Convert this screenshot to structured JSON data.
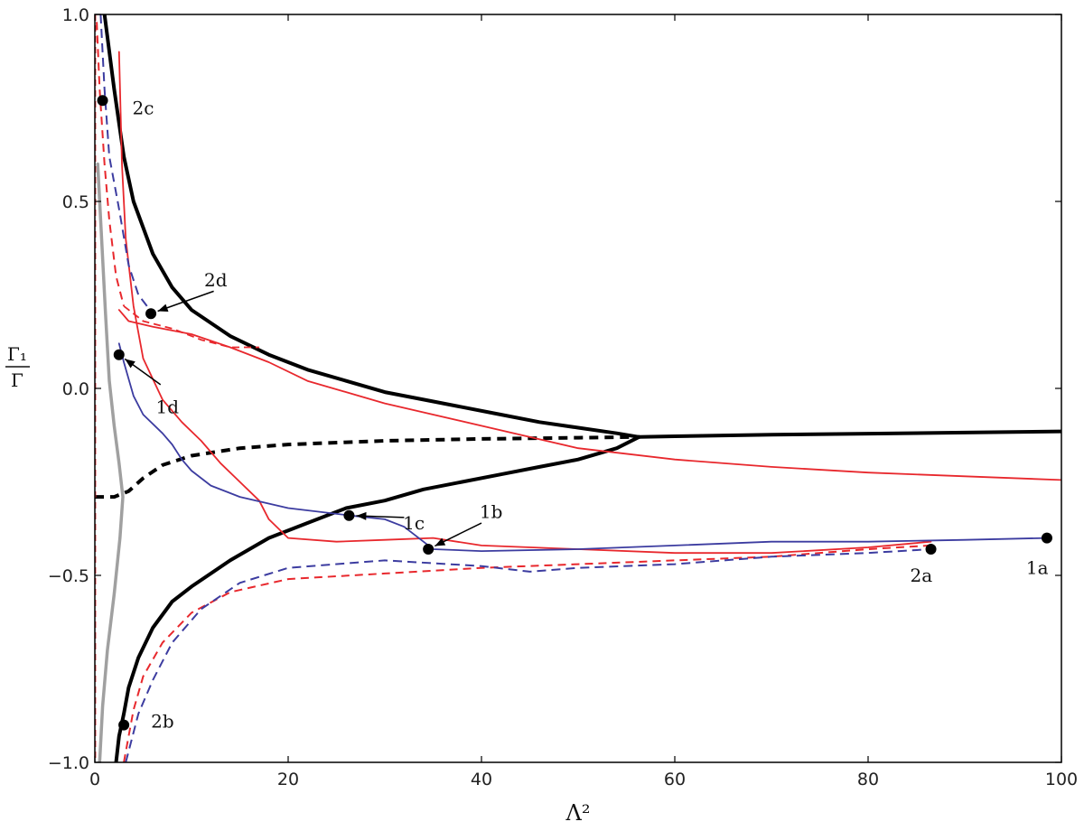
{
  "chart_data": {
    "type": "line",
    "title": "",
    "xlabel": "Λ²",
    "ylabel_numerator": "Γ₁",
    "ylabel_denominator": "Γ",
    "xlim": [
      0,
      100
    ],
    "ylim": [
      -1.0,
      1.0
    ],
    "x_ticks": [
      0,
      20,
      40,
      60,
      80,
      100
    ],
    "y_ticks": [
      -1.0,
      -0.5,
      0.0,
      0.5,
      1.0
    ],
    "x_tick_labels": [
      "0",
      "20",
      "40",
      "60",
      "80",
      "100"
    ],
    "y_tick_labels": [
      "−1.0",
      "−0.5",
      "0.0",
      "0.5",
      "1.0"
    ],
    "grid": false,
    "colors": {
      "black": "#000000",
      "red": "#e8282d",
      "blue": "#3c3ca0",
      "gray": "#a0a0a0"
    },
    "series": [
      {
        "name": "upper-boundary",
        "color": "#000000",
        "dash": "solid",
        "width": 4,
        "points": [
          [
            1.0,
            1.0
          ],
          [
            2,
            0.8
          ],
          [
            3,
            0.62
          ],
          [
            4,
            0.5
          ],
          [
            6,
            0.36
          ],
          [
            8,
            0.27
          ],
          [
            10,
            0.21
          ],
          [
            14,
            0.14
          ],
          [
            18,
            0.09
          ],
          [
            22,
            0.05
          ],
          [
            26,
            0.02
          ],
          [
            30,
            -0.01
          ],
          [
            34,
            -0.03
          ],
          [
            38,
            -0.05
          ],
          [
            42,
            -0.07
          ],
          [
            46,
            -0.09
          ],
          [
            50,
            -0.105
          ],
          [
            54,
            -0.12
          ],
          [
            56.3,
            -0.13
          ]
        ]
      },
      {
        "name": "lower-boundary",
        "color": "#000000",
        "dash": "solid",
        "width": 4,
        "points": [
          [
            56.3,
            -0.13
          ],
          [
            54,
            -0.16
          ],
          [
            50,
            -0.19
          ],
          [
            46,
            -0.21
          ],
          [
            42,
            -0.23
          ],
          [
            38,
            -0.25
          ],
          [
            34,
            -0.27
          ],
          [
            30,
            -0.3
          ],
          [
            26,
            -0.32
          ],
          [
            22,
            -0.36
          ],
          [
            18,
            -0.4
          ],
          [
            14,
            -0.46
          ],
          [
            10,
            -0.53
          ],
          [
            8,
            -0.57
          ],
          [
            6,
            -0.64
          ],
          [
            4.5,
            -0.72
          ],
          [
            3.5,
            -0.8
          ],
          [
            3,
            -0.87
          ],
          [
            2.5,
            -0.93
          ],
          [
            2.2,
            -1.0
          ]
        ]
      },
      {
        "name": "right-branch",
        "color": "#000000",
        "dash": "solid",
        "width": 4,
        "points": [
          [
            56.3,
            -0.13
          ],
          [
            60,
            -0.128
          ],
          [
            70,
            -0.124
          ],
          [
            80,
            -0.121
          ],
          [
            90,
            -0.118
          ],
          [
            100,
            -0.115
          ]
        ]
      },
      {
        "name": "dashed-branch",
        "color": "#000000",
        "dash": "10,7",
        "width": 4,
        "points": [
          [
            0,
            -0.29
          ],
          [
            2,
            -0.29
          ],
          [
            3.5,
            -0.275
          ],
          [
            5,
            -0.24
          ],
          [
            7,
            -0.205
          ],
          [
            10,
            -0.18
          ],
          [
            15,
            -0.16
          ],
          [
            20,
            -0.15
          ],
          [
            30,
            -0.14
          ],
          [
            40,
            -0.135
          ],
          [
            50,
            -0.132
          ],
          [
            56.3,
            -0.13
          ]
        ]
      },
      {
        "name": "red-solid-long",
        "color": "#e8282d",
        "dash": "solid",
        "width": 1.8,
        "points": [
          [
            2.5,
            0.21
          ],
          [
            3.5,
            0.18
          ],
          [
            6,
            0.165
          ],
          [
            10,
            0.145
          ],
          [
            14,
            0.11
          ],
          [
            18,
            0.07
          ],
          [
            22,
            0.02
          ],
          [
            26,
            -0.01
          ],
          [
            30,
            -0.04
          ],
          [
            35,
            -0.07
          ],
          [
            40,
            -0.1
          ],
          [
            50,
            -0.16
          ],
          [
            60,
            -0.19
          ],
          [
            70,
            -0.21
          ],
          [
            80,
            -0.225
          ],
          [
            90,
            -0.235
          ],
          [
            100,
            -0.245
          ]
        ]
      },
      {
        "name": "red-solid-steep",
        "color": "#e8282d",
        "dash": "solid",
        "width": 1.8,
        "points": [
          [
            2.5,
            0.9
          ],
          [
            2.8,
            0.6
          ],
          [
            3.2,
            0.4
          ],
          [
            4,
            0.22
          ],
          [
            5,
            0.08
          ],
          [
            7,
            -0.03
          ],
          [
            9,
            -0.09
          ],
          [
            11,
            -0.14
          ],
          [
            13,
            -0.2
          ],
          [
            15,
            -0.25
          ],
          [
            17,
            -0.3
          ],
          [
            18,
            -0.35
          ],
          [
            20,
            -0.4
          ],
          [
            25,
            -0.41
          ],
          [
            30,
            -0.405
          ],
          [
            35,
            -0.4
          ],
          [
            40,
            -0.42
          ],
          [
            50,
            -0.43
          ],
          [
            60,
            -0.44
          ],
          [
            70,
            -0.44
          ],
          [
            80,
            -0.425
          ],
          [
            86.5,
            -0.41
          ]
        ]
      },
      {
        "name": "red-dashed-short",
        "color": "#e8282d",
        "dash": "8,5",
        "width": 1.8,
        "points": [
          [
            3,
            0.22
          ],
          [
            5,
            0.18
          ],
          [
            8,
            0.16
          ],
          [
            11,
            0.13
          ],
          [
            14,
            0.11
          ],
          [
            17,
            0.11
          ]
        ]
      },
      {
        "name": "red-dashed-lower",
        "color": "#e8282d",
        "dash": "9,6",
        "width": 2,
        "points": [
          [
            3,
            -1.0
          ],
          [
            3.5,
            -0.93
          ],
          [
            4,
            -0.86
          ],
          [
            5,
            -0.77
          ],
          [
            7,
            -0.68
          ],
          [
            10,
            -0.6
          ],
          [
            14,
            -0.545
          ],
          [
            20,
            -0.51
          ],
          [
            30,
            -0.495
          ],
          [
            40,
            -0.48
          ],
          [
            50,
            -0.47
          ],
          [
            60,
            -0.46
          ],
          [
            70,
            -0.45
          ],
          [
            80,
            -0.43
          ],
          [
            86.5,
            -0.42
          ]
        ]
      },
      {
        "name": "red-dashed-left",
        "color": "#e8282d",
        "dash": "9,6",
        "width": 2,
        "points": [
          [
            0.2,
            0.98
          ],
          [
            0.5,
            0.8
          ],
          [
            1,
            0.6
          ],
          [
            1.5,
            0.45
          ],
          [
            2.2,
            0.3
          ],
          [
            3,
            0.22
          ]
        ]
      },
      {
        "name": "blue-solid",
        "color": "#3c3ca0",
        "dash": "solid",
        "width": 1.8,
        "points": [
          [
            2.5,
            0.12
          ],
          [
            3,
            0.07
          ],
          [
            4,
            -0.02
          ],
          [
            5,
            -0.07
          ],
          [
            7,
            -0.12
          ],
          [
            8,
            -0.15
          ],
          [
            9,
            -0.19
          ],
          [
            10,
            -0.22
          ],
          [
            12,
            -0.26
          ],
          [
            15,
            -0.29
          ],
          [
            20,
            -0.32
          ],
          [
            26.5,
            -0.34
          ],
          [
            30,
            -0.35
          ],
          [
            32,
            -0.37
          ],
          [
            34,
            -0.41
          ],
          [
            35,
            -0.43
          ],
          [
            40,
            -0.435
          ],
          [
            50,
            -0.43
          ],
          [
            60,
            -0.42
          ],
          [
            70,
            -0.41
          ],
          [
            80,
            -0.41
          ],
          [
            90,
            -0.405
          ],
          [
            98.5,
            -0.4
          ]
        ]
      },
      {
        "name": "blue-dashed-lower",
        "color": "#3c3ca0",
        "dash": "10,6",
        "width": 2,
        "points": [
          [
            3.2,
            -1.0
          ],
          [
            3.7,
            -0.95
          ],
          [
            4.5,
            -0.87
          ],
          [
            6,
            -0.78
          ],
          [
            8,
            -0.68
          ],
          [
            11,
            -0.59
          ],
          [
            15,
            -0.52
          ],
          [
            20,
            -0.48
          ],
          [
            30,
            -0.46
          ],
          [
            40,
            -0.475
          ],
          [
            45,
            -0.49
          ],
          [
            50,
            -0.48
          ],
          [
            60,
            -0.47
          ],
          [
            70,
            -0.45
          ],
          [
            80,
            -0.44
          ],
          [
            86.5,
            -0.43
          ]
        ]
      },
      {
        "name": "blue-dashed-upper",
        "color": "#3c3ca0",
        "dash": "10,6",
        "width": 2,
        "points": [
          [
            0.6,
            1.0
          ],
          [
            1,
            0.8
          ],
          [
            1.5,
            0.62
          ],
          [
            2.5,
            0.48
          ],
          [
            3.5,
            0.33
          ],
          [
            4.5,
            0.25
          ],
          [
            6,
            0.2
          ]
        ]
      },
      {
        "name": "gray-curve",
        "color": "#a0a0a0",
        "dash": "solid",
        "width": 3.5,
        "points": [
          [
            0.3,
            0.6
          ],
          [
            0.7,
            0.4
          ],
          [
            1.1,
            0.2
          ],
          [
            1.5,
            0.02
          ],
          [
            2,
            -0.1
          ],
          [
            2.5,
            -0.2
          ],
          [
            2.9,
            -0.29
          ],
          [
            2.6,
            -0.4
          ],
          [
            2,
            -0.55
          ],
          [
            1.3,
            -0.7
          ],
          [
            0.8,
            -0.85
          ],
          [
            0.5,
            -1.0
          ]
        ]
      },
      {
        "name": "red-dashed-axis",
        "color": "#e8282d",
        "dash": "7,5",
        "width": 1.8,
        "points": [
          [
            0.05,
            1.0
          ],
          [
            0.05,
            -1.0
          ]
        ]
      }
    ],
    "points": [
      {
        "label": "1a",
        "x": 98.5,
        "y": -0.4
      },
      {
        "label": "1b",
        "x": 34.5,
        "y": -0.43
      },
      {
        "label": "1c",
        "x": 26.3,
        "y": -0.34
      },
      {
        "label": "1d",
        "x": 2.5,
        "y": 0.09
      },
      {
        "label": "2a",
        "x": 86.5,
        "y": -0.43
      },
      {
        "label": "2b",
        "x": 3.0,
        "y": -0.9
      },
      {
        "label": "2c",
        "x": 0.8,
        "y": 0.77
      },
      {
        "label": "2d",
        "x": 5.8,
        "y": 0.2
      }
    ],
    "annotations": [
      {
        "label": "1a",
        "label_x": 97.5,
        "label_y": -0.48,
        "arrow": false
      },
      {
        "label": "1b",
        "label_x": 41.0,
        "label_y": -0.33,
        "arrow": true,
        "arrow_from_x": 40.0,
        "arrow_from_y": -0.36
      },
      {
        "label": "1c",
        "label_x": 33.0,
        "label_y": -0.36,
        "arrow": true,
        "arrow_from_x": 32.0,
        "arrow_from_y": -0.345
      },
      {
        "label": "1d",
        "label_x": 7.5,
        "label_y": -0.05,
        "arrow": true,
        "arrow_from_x": 6.8,
        "arrow_from_y": 0.01
      },
      {
        "label": "2a",
        "label_x": 85.5,
        "label_y": -0.5,
        "arrow": false
      },
      {
        "label": "2b",
        "label_x": 7.0,
        "label_y": -0.89,
        "arrow": false
      },
      {
        "label": "2c",
        "label_x": 5.0,
        "label_y": 0.75,
        "arrow": false
      },
      {
        "label": "2d",
        "label_x": 12.5,
        "label_y": 0.29,
        "arrow": true,
        "arrow_from_x": 12.3,
        "arrow_from_y": 0.26
      }
    ]
  }
}
